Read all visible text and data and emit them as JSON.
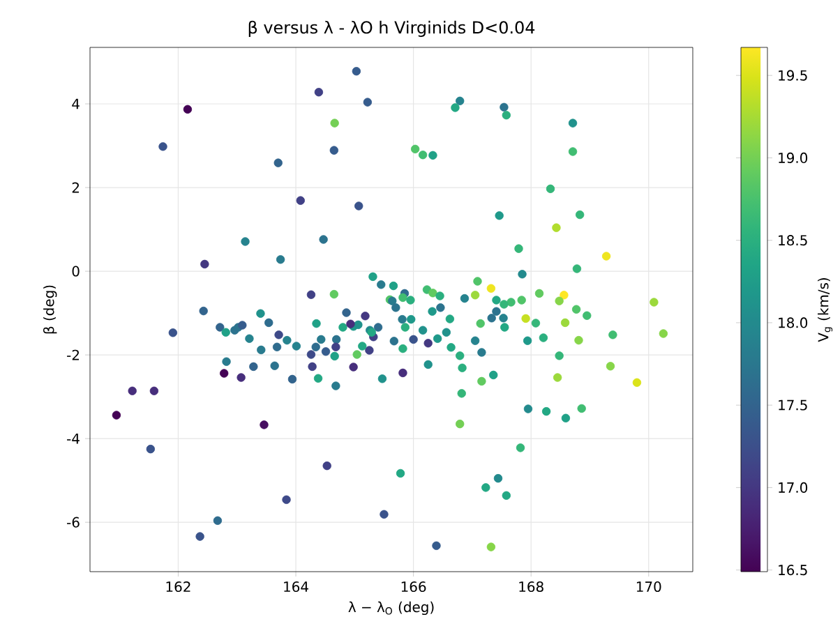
{
  "chart_data": {
    "type": "scatter",
    "title": "β versus λ - λO h Virginids D<0.04",
    "xlabel": "λ − λ$_{O}$ (deg)",
    "ylabel": "β (deg)",
    "clabel": "V$_{g}$ (km/s)",
    "x": [
      165.03,
      164.39,
      165.22,
      162.16,
      164.66,
      161.74,
      164.65,
      163.7,
      164.08,
      165.07,
      163.14,
      164.47,
      162.45,
      163.74,
      165.31,
      164.26,
      164.65,
      166.79,
      166.71,
      167.54,
      167.58,
      168.71,
      166.03,
      166.16,
      166.33,
      168.71,
      168.33,
      167.46,
      168.83,
      168.43,
      167.79,
      169.28,
      168.78,
      167.85,
      165.45,
      165.66,
      165.85,
      166.23,
      166.33,
      166.45,
      167.09,
      167.05,
      167.32,
      166.87,
      167.41,
      168.14,
      168.56,
      168.48,
      170.09,
      167.84,
      167.66,
      167.54,
      168.77,
      168.95,
      168.58,
      167.91,
      168.08,
      168.21,
      167.94,
      168.81,
      169.39,
      170.25,
      168.48,
      169.35,
      168.45,
      169.8,
      167.95,
      168.26,
      168.59,
      168.86,
      167.82,
      167.44,
      167.23,
      167.58,
      167.32,
      166.39,
      165.5,
      165.78,
      166.79,
      166.82,
      167.16,
      167.36,
      166.83,
      166.79,
      166.64,
      167.05,
      167.16,
      166.41,
      166.56,
      166.16,
      166.25,
      166.0,
      165.82,
      165.67,
      166.25,
      165.82,
      165.47,
      165.18,
      165.4,
      165.26,
      165.32,
      165.25,
      165.81,
      165.96,
      165.86,
      166.32,
      166.46,
      166.62,
      167.14,
      167.33,
      167.41,
      167.53,
      167.55,
      165.6,
      165.64,
      165.7,
      165.82,
      165.95,
      162.43,
      161.91,
      162.71,
      162.81,
      162.96,
      163.02,
      163.09,
      163.4,
      163.54,
      163.21,
      163.71,
      163.85,
      163.68,
      164.01,
      163.41,
      162.82,
      162.78,
      163.07,
      163.28,
      163.64,
      163.94,
      161.22,
      161.59,
      160.95,
      163.46,
      161.53,
      164.53,
      163.84,
      162.67,
      162.37,
      164.35,
      164.86,
      164.8,
      164.98,
      165.06,
      164.93,
      164.43,
      164.34,
      164.26,
      164.51,
      164.69,
      164.68,
      164.66,
      165.13,
      165.04,
      165.29,
      164.28,
      164.38,
      164.68,
      164.98
    ],
    "values": [
      4.78,
      4.28,
      4.04,
      3.87,
      3.54,
      2.98,
      2.89,
      2.59,
      1.69,
      1.56,
      0.71,
      0.76,
      0.17,
      0.28,
      -0.13,
      -0.56,
      -0.55,
      4.07,
      3.91,
      3.92,
      3.73,
      3.54,
      2.92,
      2.78,
      2.77,
      2.86,
      1.97,
      1.33,
      1.35,
      1.04,
      0.54,
      0.36,
      0.06,
      -0.07,
      -0.32,
      -0.35,
      -0.53,
      -0.44,
      -0.52,
      -0.59,
      -0.24,
      -0.57,
      -0.41,
      -0.65,
      -0.69,
      -0.53,
      -0.57,
      -0.71,
      -0.74,
      -0.69,
      -0.74,
      -0.79,
      -0.91,
      -1.06,
      -1.23,
      -1.13,
      -1.24,
      -1.59,
      -1.66,
      -1.65,
      -1.52,
      -1.49,
      -2.02,
      -2.27,
      -2.54,
      -2.66,
      -3.29,
      -3.35,
      -3.51,
      -3.28,
      -4.22,
      -4.95,
      -5.17,
      -5.36,
      -6.59,
      -6.56,
      -5.81,
      -4.83,
      -3.65,
      -2.92,
      -2.63,
      -2.48,
      -2.31,
      -2.02,
      -1.82,
      -1.66,
      -1.94,
      -1.61,
      -1.46,
      -1.41,
      -1.72,
      -1.63,
      -1.85,
      -1.67,
      -2.23,
      -2.43,
      -2.57,
      -1.07,
      -1.34,
      -1.41,
      -1.57,
      -1.89,
      -1.15,
      -1.15,
      -1.34,
      -0.96,
      -0.87,
      -1.14,
      -1.25,
      -1.12,
      -0.96,
      -1.12,
      -1.34,
      -0.68,
      -0.71,
      -0.87,
      -0.63,
      -0.69,
      -0.95,
      -1.47,
      -1.34,
      -1.46,
      -1.41,
      -1.34,
      -1.29,
      -1.01,
      -1.23,
      -1.61,
      -1.52,
      -1.65,
      -1.81,
      -1.79,
      -1.88,
      -2.16,
      -2.44,
      -2.54,
      -2.28,
      -2.26,
      -2.58,
      -2.86,
      -2.86,
      -3.44,
      -3.67,
      -4.25,
      -4.65,
      -5.46,
      -5.96,
      -6.34,
      -1.25,
      -0.99,
      -1.34,
      -1.32,
      -1.28,
      -1.26,
      -1.63,
      -1.81,
      -1.99,
      -1.92,
      -1.63,
      -1.81,
      -2.03,
      -1.79,
      -1.99,
      -1.46,
      -2.28,
      -2.56,
      -2.74,
      -2.29
    ],
    "cvalues": [
      17.4,
      17.1,
      17.4,
      16.5,
      19.0,
      17.3,
      17.4,
      17.5,
      17.1,
      17.3,
      17.9,
      17.7,
      17.0,
      17.8,
      18.3,
      17.1,
      18.9,
      17.9,
      18.4,
      17.7,
      18.5,
      18.1,
      18.8,
      18.7,
      18.3,
      18.7,
      18.6,
      18.2,
      18.6,
      19.3,
      18.6,
      19.6,
      18.6,
      18.0,
      17.8,
      18.3,
      17.6,
      18.7,
      18.9,
      18.5,
      18.8,
      19.2,
      19.6,
      17.9,
      18.4,
      18.9,
      19.7,
      19.1,
      19.2,
      18.8,
      18.7,
      18.6,
      18.8,
      18.7,
      19.2,
      19.4,
      18.6,
      18.5,
      18.2,
      19.1,
      18.7,
      19.1,
      18.6,
      19.1,
      19.2,
      19.5,
      18.0,
      18.4,
      18.3,
      18.7,
      18.6,
      18.0,
      18.4,
      18.4,
      19.1,
      17.4,
      17.3,
      18.4,
      19.0,
      18.6,
      18.9,
      18.3,
      18.5,
      18.5,
      18.4,
      17.9,
      17.8,
      18.2,
      18.1,
      18.1,
      17.0,
      17.3,
      18.5,
      17.7,
      18.1,
      16.9,
      18.1,
      17.0,
      17.6,
      18.0,
      17.1,
      17.1,
      17.8,
      18.2,
      18.5,
      18.2,
      17.7,
      18.4,
      18.8,
      17.7,
      17.7,
      17.9,
      18.4,
      18.8,
      17.8,
      17.7,
      18.7,
      18.5,
      17.5,
      17.3,
      17.5,
      18.3,
      17.7,
      17.7,
      17.4,
      18.1,
      17.6,
      17.9,
      17.2,
      17.9,
      17.6,
      17.9,
      17.8,
      17.8,
      16.5,
      16.9,
      17.5,
      17.7,
      17.5,
      16.9,
      16.9,
      16.5,
      16.6,
      17.3,
      17.1,
      17.2,
      17.6,
      17.3,
      18.3,
      17.5,
      18.4,
      18.2,
      18.1,
      16.9,
      17.8,
      17.6,
      17.2,
      17.4,
      17.7,
      17.1,
      18.3,
      18.4,
      18.9,
      18.4,
      17.1,
      18.4,
      17.8,
      16.9
    ],
    "xlim": [
      160.5,
      170.75
    ],
    "ylim": [
      -7.18,
      5.35
    ],
    "xticks": [
      162,
      164,
      166,
      168,
      170
    ],
    "yticks": [
      -6,
      -4,
      -2,
      0,
      2,
      4
    ],
    "clim": [
      16.49,
      19.67
    ],
    "cticks": [
      16.5,
      {
        "value": 17,
        "label": "17.0"
      },
      17.5,
      {
        "value": 18,
        "label": "18.0"
      },
      18.5,
      {
        "value": 19,
        "label": "19.0"
      },
      19.5
    ],
    "grid": true,
    "marker": "circle"
  }
}
